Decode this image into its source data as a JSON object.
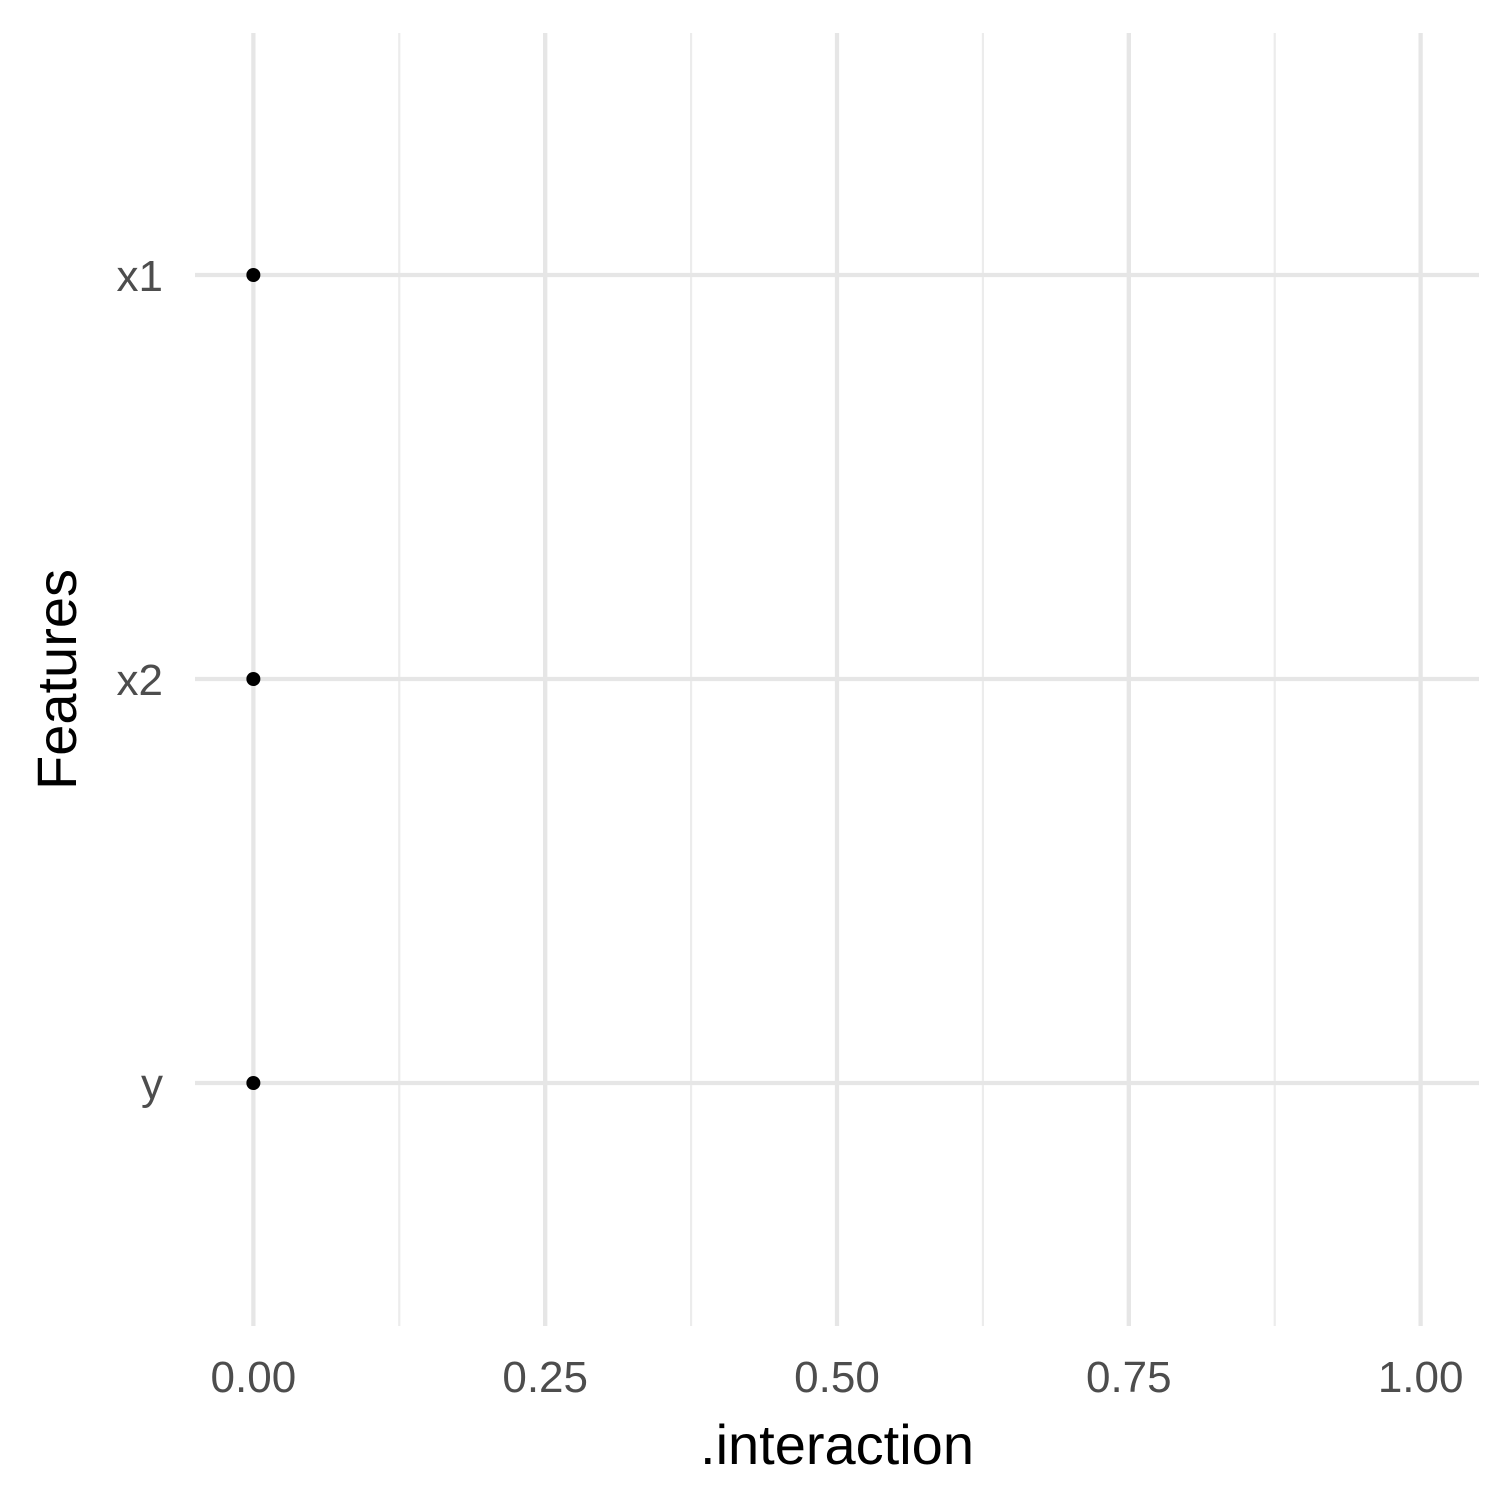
{
  "chart_data": {
    "type": "scatter",
    "title": "",
    "xlabel": ".interaction",
    "ylabel": "Features",
    "xlim": [
      -0.05,
      1.05
    ],
    "x_ticks": [
      0.0,
      0.25,
      0.5,
      0.75,
      1.0
    ],
    "x_tick_labels": [
      "0.00",
      "0.25",
      "0.50",
      "0.75",
      "1.00"
    ],
    "x_minor_ticks": [
      0.125,
      0.375,
      0.625,
      0.875
    ],
    "categories": [
      "x1",
      "x2",
      "y"
    ],
    "points": [
      {
        "feature": "x1",
        "value": 0.0
      },
      {
        "feature": "x2",
        "value": 0.0
      },
      {
        "feature": "y",
        "value": 0.0
      }
    ],
    "grid": true,
    "legend": "none",
    "colors": {
      "point": "#000000",
      "grid": "#e6e6e6",
      "tick_text": "#4d4d4d",
      "background": "#ffffff"
    }
  }
}
